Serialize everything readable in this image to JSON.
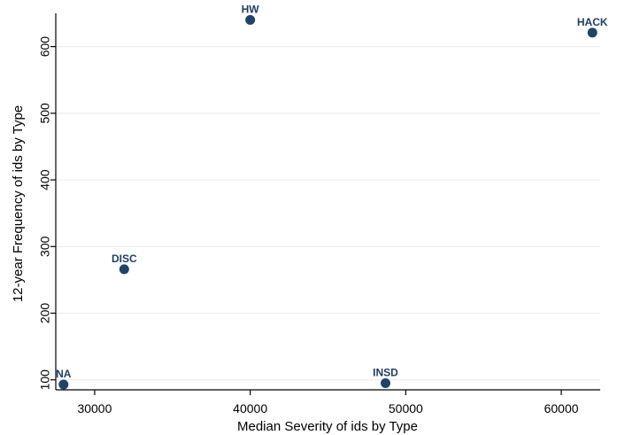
{
  "chart_data": {
    "type": "scatter",
    "title": "",
    "xlabel": "Median Severity of ids by Type",
    "ylabel": "12-year Frequency of ids by Type",
    "xlim": [
      27500,
      62500
    ],
    "ylim": [
      85,
      650
    ],
    "x_ticks": [
      30000,
      40000,
      50000,
      60000
    ],
    "y_ticks": [
      100,
      200,
      300,
      400,
      500,
      600
    ],
    "grid": "horizontal",
    "legend": "none",
    "marker_color": "#1f4468",
    "points": [
      {
        "label": "NA",
        "x": 28000,
        "y": 93
      },
      {
        "label": "DISC",
        "x": 31900,
        "y": 266
      },
      {
        "label": "HW",
        "x": 40000,
        "y": 640
      },
      {
        "label": "INSD",
        "x": 48700,
        "y": 95
      },
      {
        "label": "HACK",
        "x": 62000,
        "y": 621
      }
    ]
  }
}
